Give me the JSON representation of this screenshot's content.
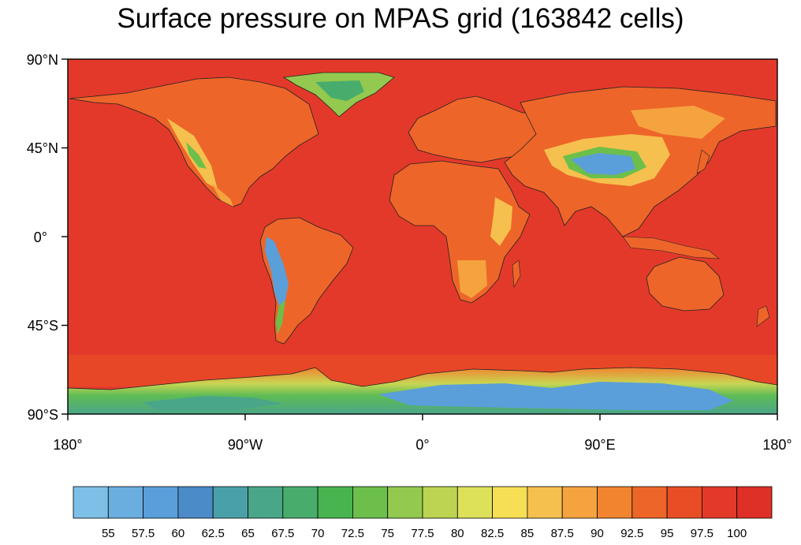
{
  "title": "Surface pressure on MPAS grid (163842 cells)",
  "map": {
    "projection": "cylindrical equidistant",
    "field": "surface pressure",
    "lon_range": [
      -180,
      180
    ],
    "lat_range": [
      -90,
      90
    ],
    "coastlines": true,
    "lat_labels": [
      "90°N",
      "45°N",
      "0°",
      "45°S",
      "90°S"
    ],
    "lon_labels": [
      "180°",
      "90°W",
      "0°",
      "90°E",
      "180°"
    ]
  },
  "colorbar": {
    "labels": [
      "55",
      "57.5",
      "60",
      "62.5",
      "65",
      "67.5",
      "70",
      "72.5",
      "75",
      "77.5",
      "80",
      "82.5",
      "85",
      "87.5",
      "90",
      "92.5",
      "95",
      "97.5",
      "100"
    ],
    "colors": [
      "#7dbfe6",
      "#6aaee0",
      "#5a9fd9",
      "#4a8bc8",
      "#4aa0a8",
      "#4aa688",
      "#48ad6c",
      "#47b44f",
      "#6cbf4a",
      "#93c94f",
      "#bcd452",
      "#dde059",
      "#f7df55",
      "#f6c04e",
      "#f4a33f",
      "#f2842f",
      "#ee6529",
      "#e84d26",
      "#e3392a",
      "#de3027"
    ]
  }
}
